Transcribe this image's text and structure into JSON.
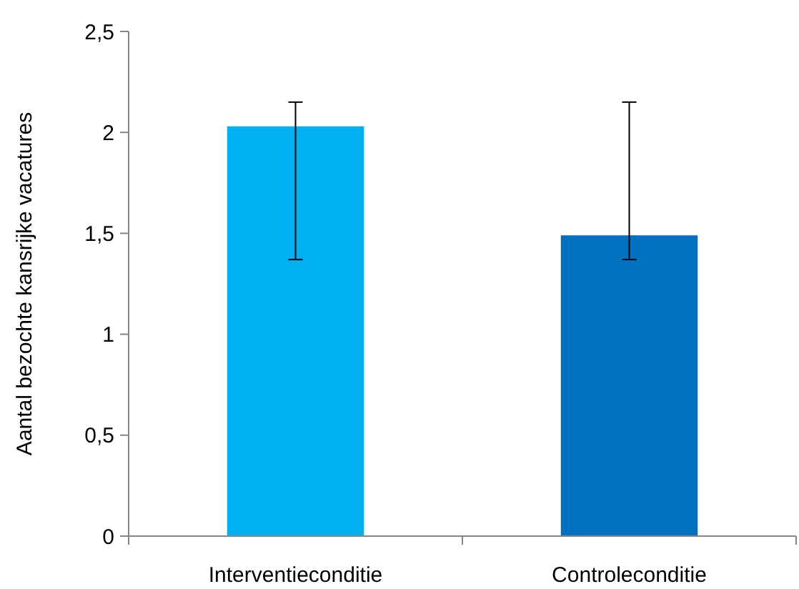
{
  "chart_data": {
    "type": "bar",
    "ylabel": "Aantal bezochte kansrijke vacatures",
    "categories": [
      "Interventieconditie",
      "Controleconditie"
    ],
    "values": [
      2.03,
      1.49
    ],
    "colors": [
      "#00b0f0",
      "#0070c0"
    ],
    "errors": [
      [
        1.37,
        2.15
      ],
      [
        1.37,
        2.15
      ]
    ],
    "ylim": [
      0,
      2.5
    ],
    "yticks": [
      0,
      {
        "value": 0.5,
        "label": "0,5"
      },
      1,
      {
        "value": 1.5,
        "label": "1,5"
      },
      2,
      {
        "value": 2.5,
        "label": "2,5"
      }
    ],
    "grid": false
  }
}
